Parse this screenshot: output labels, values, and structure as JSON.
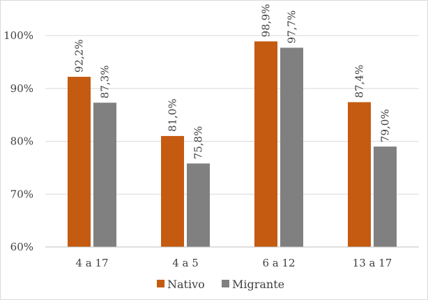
{
  "chart_data": {
    "type": "bar",
    "title": "",
    "xlabel": "",
    "ylabel": "",
    "categories": [
      "4 a 17",
      "4 a 5",
      "6 a 12",
      "13 a 17"
    ],
    "series": [
      {
        "name": "Nativo",
        "color": "#C55A11",
        "values": [
          92.2,
          81.0,
          98.9,
          87.4
        ],
        "labels": [
          "92,2%",
          "81,0%",
          "98,9%",
          "87,4%"
        ]
      },
      {
        "name": "Migrante",
        "color": "#808080",
        "values": [
          87.3,
          75.8,
          97.7,
          79.0
        ],
        "labels": [
          "87,3%",
          "75,8%",
          "97,7%",
          "79,0%"
        ]
      }
    ],
    "ylim": [
      60,
      100
    ],
    "yticks": [
      60,
      70,
      80,
      90,
      100
    ],
    "ytick_labels": [
      "60%",
      "70%",
      "80%",
      "90%",
      "100%"
    ],
    "grid": true,
    "legend_position": "bottom"
  }
}
